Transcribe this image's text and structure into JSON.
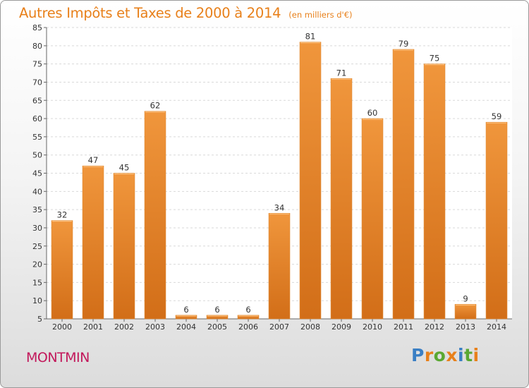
{
  "chart_data": {
    "type": "bar",
    "title": "Autres Impôts et Taxes de 2000 à 2014",
    "subtitle": "(en milliers d'€)",
    "xlabel": "",
    "ylabel": "",
    "categories": [
      "2000",
      "2001",
      "2002",
      "2003",
      "2004",
      "2005",
      "2006",
      "2007",
      "2008",
      "2009",
      "2010",
      "2011",
      "2012",
      "2013",
      "2014"
    ],
    "values": [
      32,
      47,
      45,
      62,
      6,
      6,
      6,
      34,
      81,
      71,
      60,
      79,
      75,
      9,
      59
    ],
    "ylim": [
      5,
      85
    ],
    "yticks": [
      5,
      10,
      15,
      20,
      25,
      30,
      35,
      40,
      45,
      50,
      55,
      60,
      65,
      70,
      75,
      80,
      85
    ],
    "grid": true,
    "bar_color": "#f0963c",
    "bar_color_dark": "#d26e18"
  },
  "commune": "MONTMIN",
  "logo": {
    "letters": [
      {
        "ch": "P",
        "color": "#3a7fc4"
      },
      {
        "ch": "r",
        "color": "#e8801a"
      },
      {
        "ch": "o",
        "color": "#5aa832"
      },
      {
        "ch": "x",
        "color": "#e8801a"
      },
      {
        "ch": "i",
        "color": "#3a7fc4"
      },
      {
        "ch": "t",
        "color": "#5aa832"
      },
      {
        "ch": "i",
        "color": "#e8801a"
      }
    ]
  }
}
